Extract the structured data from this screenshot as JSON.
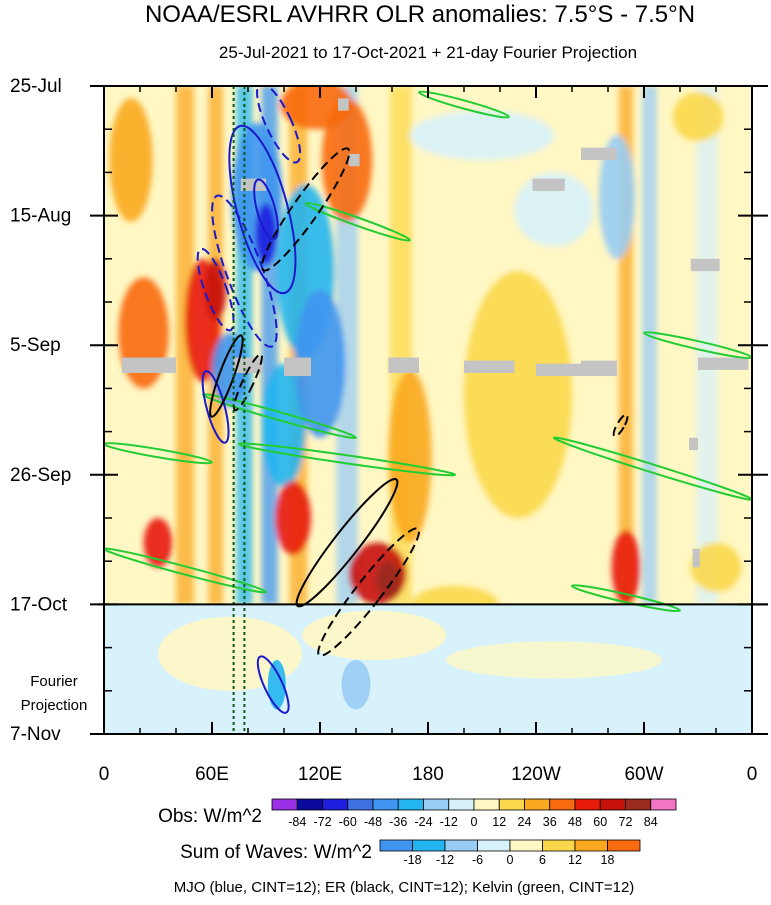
{
  "chart_data": {
    "type": "heatmap",
    "title": "NOAA/ESRL AVHRR OLR anomalies: 7.5°S - 7.5°N",
    "subtitle": "25-Jul-2021 to 17-Oct-2021 + 21-day Fourier Projection",
    "x_tick_labels": [
      "0",
      "60E",
      "120E",
      "180",
      "120W",
      "60W",
      "0"
    ],
    "x_tick_lon": [
      0,
      60,
      120,
      180,
      240,
      300,
      360
    ],
    "y_tick_labels": [
      "25-Jul",
      "15-Aug",
      "5-Sep",
      "26-Sep",
      "17-Oct",
      "7-Nov"
    ],
    "y_tick_days": [
      0,
      21,
      42,
      63,
      84,
      105
    ],
    "projection_label_lines": [
      "Fourier",
      "Projection"
    ],
    "xlim": [
      0,
      360
    ],
    "ylim_days": [
      0,
      105
    ],
    "obs_end_day": 84,
    "reference_lon": [
      72,
      78
    ],
    "legend_obs": {
      "label": "Obs: W/m^2",
      "levels": [
        "-84",
        "-72",
        "-60",
        "-48",
        "-36",
        "-24",
        "-12",
        "0",
        "12",
        "24",
        "36",
        "48",
        "60",
        "72",
        "84"
      ],
      "colors": [
        "#9b30e6",
        "#0a0a9c",
        "#1e1ee0",
        "#3f6fe0",
        "#3f95f0",
        "#22b5f0",
        "#99ccf5",
        "#d8f2fb",
        "#fff7c4",
        "#fbd84b",
        "#f9a81f",
        "#f86a0e",
        "#e81b0b",
        "#c8110a",
        "#9a2a1e",
        "#f375c4"
      ]
    },
    "legend_waves": {
      "label": "Sum of Waves: W/m^2",
      "levels": [
        "-18",
        "-12",
        "-6",
        "0",
        "6",
        "12",
        "18"
      ],
      "colors": [
        "#3f95f0",
        "#22b5f0",
        "#99ccf5",
        "#d8f2fb",
        "#fff7c4",
        "#fbd84b",
        "#f9a81f",
        "#f86a0e"
      ]
    },
    "footer": "MJO (blue, CINT=12); ER (black, CINT=12); Kelvin (green, CINT=12)",
    "anomaly_bands": [
      {
        "lon": 45,
        "width": 10,
        "value": 30
      },
      {
        "lon": 62,
        "width": 8,
        "value": 24
      },
      {
        "lon": 78,
        "width": 9,
        "value": -36
      },
      {
        "lon": 92,
        "width": 9,
        "value": -48
      },
      {
        "lon": 108,
        "width": 10,
        "value": 24
      },
      {
        "lon": 135,
        "width": 12,
        "value": -24
      },
      {
        "lon": 165,
        "width": 12,
        "value": 18
      },
      {
        "lon": 290,
        "width": 8,
        "value": 30
      },
      {
        "lon": 303,
        "width": 8,
        "value": -24
      },
      {
        "lon": 335,
        "width": 12,
        "value": -12
      }
    ],
    "anomaly_blobs": [
      {
        "lon": 15,
        "day": 12,
        "rlon": 12,
        "rday": 10,
        "value": 24
      },
      {
        "lon": 22,
        "day": 40,
        "rlon": 14,
        "rday": 9,
        "value": 36
      },
      {
        "lon": 30,
        "day": 74,
        "rlon": 8,
        "rday": 4,
        "value": 48
      },
      {
        "lon": 55,
        "day": 38,
        "rlon": 10,
        "rday": 10,
        "value": 48
      },
      {
        "lon": 62,
        "day": 33,
        "rlon": 6,
        "rday": 5,
        "value": 60
      },
      {
        "lon": 70,
        "day": 46,
        "rlon": 10,
        "rday": 6,
        "value": -48
      },
      {
        "lon": 85,
        "day": 18,
        "rlon": 14,
        "rday": 12,
        "value": -48
      },
      {
        "lon": 90,
        "day": 24,
        "rlon": 6,
        "rday": 5,
        "value": -72
      },
      {
        "lon": 100,
        "day": 55,
        "rlon": 12,
        "rday": 10,
        "value": -36
      },
      {
        "lon": 105,
        "day": 70,
        "rlon": 10,
        "rday": 6,
        "value": 48
      },
      {
        "lon": 112,
        "day": 30,
        "rlon": 16,
        "rday": 14,
        "value": -36
      },
      {
        "lon": 120,
        "day": 45,
        "rlon": 14,
        "rday": 12,
        "value": -48
      },
      {
        "lon": 118,
        "day": 3,
        "rlon": 20,
        "rday": 4,
        "value": 36
      },
      {
        "lon": 135,
        "day": 12,
        "rlon": 14,
        "rday": 10,
        "value": 36
      },
      {
        "lon": 152,
        "day": 79,
        "rlon": 16,
        "rday": 5,
        "value": 60
      },
      {
        "lon": 158,
        "day": 80,
        "rlon": 7,
        "rday": 3,
        "value": 72
      },
      {
        "lon": 170,
        "day": 60,
        "rlon": 12,
        "rday": 14,
        "value": 24
      },
      {
        "lon": 210,
        "day": 8,
        "rlon": 40,
        "rday": 4,
        "value": -12
      },
      {
        "lon": 230,
        "day": 50,
        "rlon": 30,
        "rday": 20,
        "value": 12
      },
      {
        "lon": 250,
        "day": 20,
        "rlon": 22,
        "rday": 6,
        "value": -12
      },
      {
        "lon": 285,
        "day": 18,
        "rlon": 10,
        "rday": 10,
        "value": -24
      },
      {
        "lon": 290,
        "day": 78,
        "rlon": 8,
        "rday": 6,
        "value": 48
      },
      {
        "lon": 330,
        "day": 5,
        "rlon": 14,
        "rday": 4,
        "value": 12
      },
      {
        "lon": 340,
        "day": 78,
        "rlon": 14,
        "rday": 4,
        "value": 12
      },
      {
        "lon": 195,
        "day": 84,
        "rlon": 24,
        "rday": 3,
        "value": 12
      }
    ],
    "missing_patches": [
      {
        "lon0": 10,
        "lon1": 40,
        "day0": 44,
        "day1": 46.5
      },
      {
        "lon0": 72,
        "lon1": 88,
        "day0": 44,
        "day1": 46.5
      },
      {
        "lon0": 100,
        "lon1": 115,
        "day0": 44,
        "day1": 47
      },
      {
        "lon0": 158,
        "lon1": 175,
        "day0": 44,
        "day1": 46.5
      },
      {
        "lon0": 200,
        "lon1": 228,
        "day0": 44.5,
        "day1": 46.5
      },
      {
        "lon0": 240,
        "lon1": 265,
        "day0": 45,
        "day1": 47
      },
      {
        "lon0": 265,
        "lon1": 285,
        "day0": 44.5,
        "day1": 47
      },
      {
        "lon0": 330,
        "lon1": 358,
        "day0": 44,
        "day1": 46
      },
      {
        "lon0": 76,
        "lon1": 90,
        "day0": 15,
        "day1": 17
      },
      {
        "lon0": 130,
        "lon1": 136,
        "day0": 2,
        "day1": 4
      },
      {
        "lon0": 136,
        "lon1": 142,
        "day0": 11,
        "day1": 13
      },
      {
        "lon0": 238,
        "lon1": 256,
        "day0": 15,
        "day1": 17
      },
      {
        "lon0": 265,
        "lon1": 285,
        "day0": 10,
        "day1": 12
      },
      {
        "lon0": 326,
        "lon1": 342,
        "day0": 28,
        "day1": 30
      },
      {
        "lon0": 325,
        "lon1": 330,
        "day0": 57,
        "day1": 59
      },
      {
        "lon0": 327,
        "lon1": 331,
        "day0": 75,
        "day1": 78
      }
    ],
    "mjo_contours": [
      {
        "lon": 88,
        "day": 20,
        "rlon": 14,
        "rday": 14,
        "angle": -15,
        "dashed": false
      },
      {
        "lon": 90,
        "day": 20,
        "rlon": 5,
        "rday": 5,
        "angle": -15,
        "dashed": false
      },
      {
        "lon": 78,
        "day": 30,
        "rlon": 10,
        "rday": 13,
        "angle": -20,
        "dashed": true
      },
      {
        "lon": 62,
        "day": 33,
        "rlon": 6,
        "rday": 7,
        "angle": -20,
        "dashed": true
      },
      {
        "lon": 97,
        "day": 6,
        "rlon": 7,
        "rday": 7,
        "angle": -25,
        "dashed": true
      },
      {
        "lon": 62,
        "day": 52,
        "rlon": 5,
        "rday": 6,
        "angle": -15,
        "dashed": false
      },
      {
        "lon": 94,
        "day": 97,
        "rlon": 5,
        "rday": 5,
        "angle": -25,
        "dashed": false
      }
    ],
    "er_contours": [
      {
        "lon": 112,
        "day": 20,
        "rlon": 7,
        "rday": 12,
        "angle": 35,
        "dashed": true
      },
      {
        "lon": 68,
        "day": 47,
        "rlon": 4,
        "rday": 7,
        "angle": 20,
        "dashed": false
      },
      {
        "lon": 80,
        "day": 48,
        "rlon": 3,
        "rday": 5,
        "angle": 25,
        "dashed": true
      },
      {
        "lon": 135,
        "day": 74,
        "rlon": 7,
        "rday": 13,
        "angle": 38,
        "dashed": false
      },
      {
        "lon": 147,
        "day": 82,
        "rlon": 7,
        "rday": 13,
        "angle": 38,
        "dashed": true
      },
      {
        "lon": 287,
        "day": 55,
        "rlon": 2,
        "rday": 2,
        "angle": 30,
        "dashed": true
      }
    ],
    "kelvin_streaks": [
      {
        "lon0": 175,
        "day0": 1,
        "lon1": 225,
        "day1": 5
      },
      {
        "lon0": 112,
        "day0": 19,
        "lon1": 170,
        "day1": 25
      },
      {
        "lon0": 55,
        "day0": 50,
        "lon1": 140,
        "day1": 57
      },
      {
        "lon0": 0,
        "day0": 58,
        "lon1": 60,
        "day1": 61
      },
      {
        "lon0": 75,
        "day0": 58,
        "lon1": 195,
        "day1": 63
      },
      {
        "lon0": 0,
        "day0": 75,
        "lon1": 90,
        "day1": 82
      },
      {
        "lon0": 300,
        "day0": 40,
        "lon1": 360,
        "day1": 44
      },
      {
        "lon0": 250,
        "day0": 57,
        "lon1": 360,
        "day1": 67
      },
      {
        "lon0": 260,
        "day0": 81,
        "lon1": 320,
        "day1": 85
      }
    ]
  }
}
